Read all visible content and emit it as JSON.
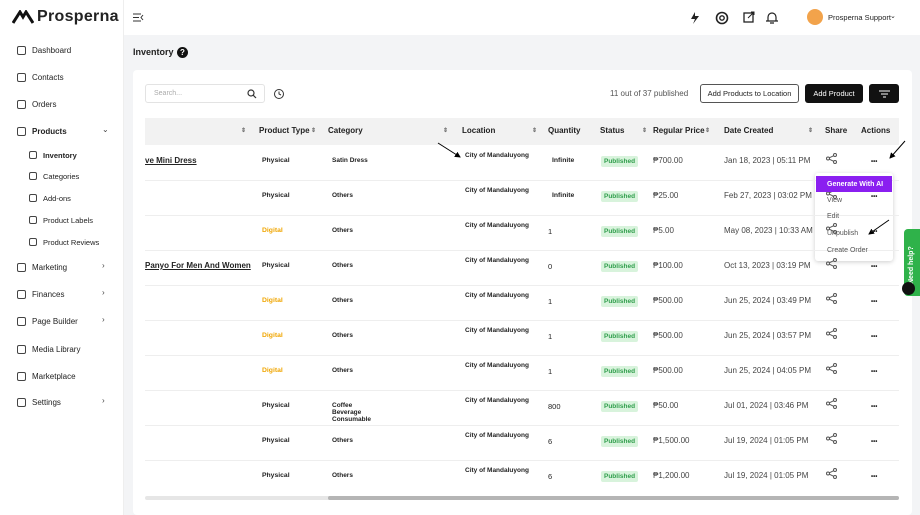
{
  "sidebar": {
    "brand": "Prosperna",
    "nav": [
      {
        "label": "Dashboard"
      },
      {
        "label": "Contacts"
      },
      {
        "label": "Orders"
      },
      {
        "label": "Products",
        "children": [
          "Inventory",
          "Categories",
          "Add-ons",
          "Product Labels",
          "Product Reviews"
        ]
      },
      {
        "label": "Marketing"
      },
      {
        "label": "Finances"
      },
      {
        "label": "Page Builder"
      },
      {
        "label": "Media Library"
      },
      {
        "label": "Marketplace"
      },
      {
        "label": "Settings"
      }
    ]
  },
  "topbar": {
    "user": "Prosperna Support"
  },
  "page": {
    "title": "Inventory"
  },
  "toolbar": {
    "search_placeholder": "Search...",
    "count": "11 out of 37 published",
    "buttons": [
      "Add Products to Location",
      "Add Product"
    ]
  },
  "table": {
    "headers": [
      "Product Type",
      "Category",
      "Location",
      "Quantity",
      "Status",
      "Regular Price",
      "Date Created",
      "Share",
      "Actions"
    ],
    "rows": [
      {
        "name": "ve Mini Dress",
        "type": "Physical",
        "categories": [
          "Satin Dress"
        ],
        "location": "City of Mandaluyong",
        "quantity": "Infinite",
        "status": "Published",
        "price": "₱700.00",
        "date": "Jan 18, 2023 | 05:11 PM"
      },
      {
        "type": "Physical",
        "categories": [
          "Others"
        ],
        "location": "City of Mandaluyong",
        "quantity": "Infinite",
        "status": "Published",
        "price": "₱25.00",
        "date": "Feb 27, 2023 | 03:02 PM"
      },
      {
        "type": "Digital",
        "categories": [
          "Others"
        ],
        "location": "City of Mandaluyong",
        "quantity": "1",
        "status": "Published",
        "price": "₱5.00",
        "date": "May 08, 2023 | 10:33 AM"
      },
      {
        "name": "Panyo For Men And Women",
        "type": "Physical",
        "categories": [
          "Others"
        ],
        "location": "City of Mandaluyong",
        "quantity": "0",
        "status": "Published",
        "price": "₱100.00",
        "date": "Oct 13, 2023 | 03:19 PM"
      },
      {
        "type": "Digital",
        "categories": [
          "Others"
        ],
        "location": "City of Mandaluyong",
        "quantity": "1",
        "status": "Published",
        "price": "₱500.00",
        "date": "Jun 25, 2024 | 03:49 PM"
      },
      {
        "type": "Digital",
        "categories": [
          "Others"
        ],
        "location": "City of Mandaluyong",
        "quantity": "1",
        "status": "Published",
        "price": "₱500.00",
        "date": "Jun 25, 2024 | 03:57 PM"
      },
      {
        "type": "Digital",
        "categories": [
          "Others"
        ],
        "location": "City of Mandaluyong",
        "quantity": "1",
        "status": "Published",
        "price": "₱500.00",
        "date": "Jun 25, 2024 | 04:05 PM"
      },
      {
        "type": "Physical",
        "categories": [
          "Coffee",
          "Beverage",
          "Consumable"
        ],
        "location": "City of Mandaluyong",
        "quantity": "800",
        "status": "Published",
        "price": "₱50.00",
        "date": "Jul 01, 2024 | 03:46 PM"
      },
      {
        "type": "Physical",
        "categories": [
          "Others"
        ],
        "location": "City of Mandaluyong",
        "quantity": "6",
        "status": "Published",
        "price": "₱1,500.00",
        "date": "Jul 19, 2024 | 01:05 PM"
      },
      {
        "type": "Physical",
        "categories": [
          "Others"
        ],
        "location": "City of Mandaluyong",
        "quantity": "6",
        "status": "Published",
        "price": "₱1,200.00",
        "date": "Jul 19, 2024 | 01:05 PM"
      }
    ]
  },
  "menu": {
    "items": [
      "Generate With AI",
      "View",
      "Edit",
      "Unpublish",
      "Create Order"
    ]
  },
  "help": "Need help?"
}
